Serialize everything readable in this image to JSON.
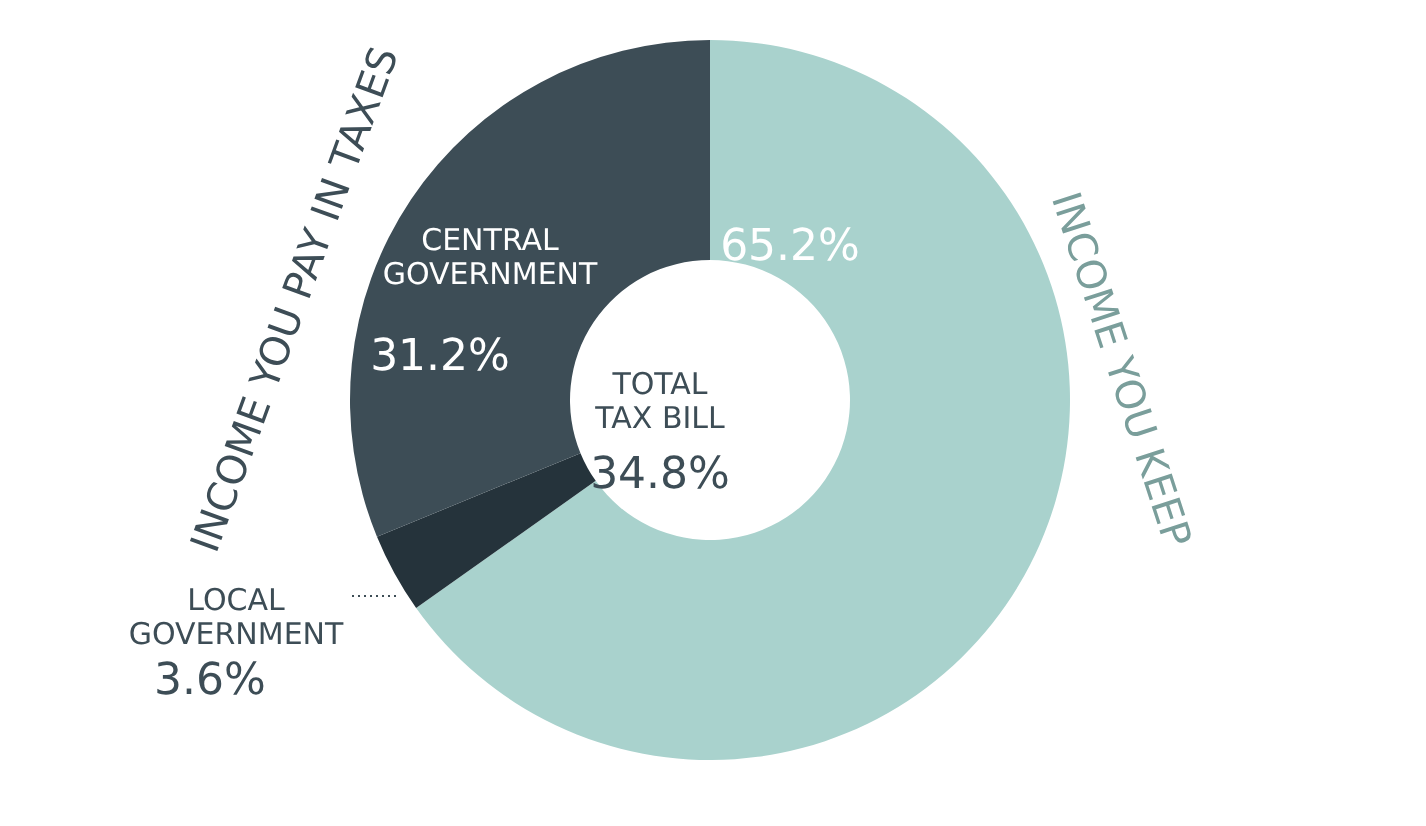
{
  "chart_data": {
    "type": "donut",
    "categories": [
      "INCOME YOU KEEP",
      "LOCAL GOVERNMENT",
      "CENTRAL GOVERNMENT"
    ],
    "values": [
      65.2,
      3.6,
      31.2
    ],
    "colors": [
      "#a9d2cd",
      "#25333b",
      "#3d4d56"
    ],
    "value_labels": [
      "65.2%",
      "3.6%",
      "31.2%"
    ],
    "annotations": [
      "INCOME YOU PAY IN TAXES",
      "TOTAL\nTAX BILL",
      "34.8%"
    ]
  }
}
